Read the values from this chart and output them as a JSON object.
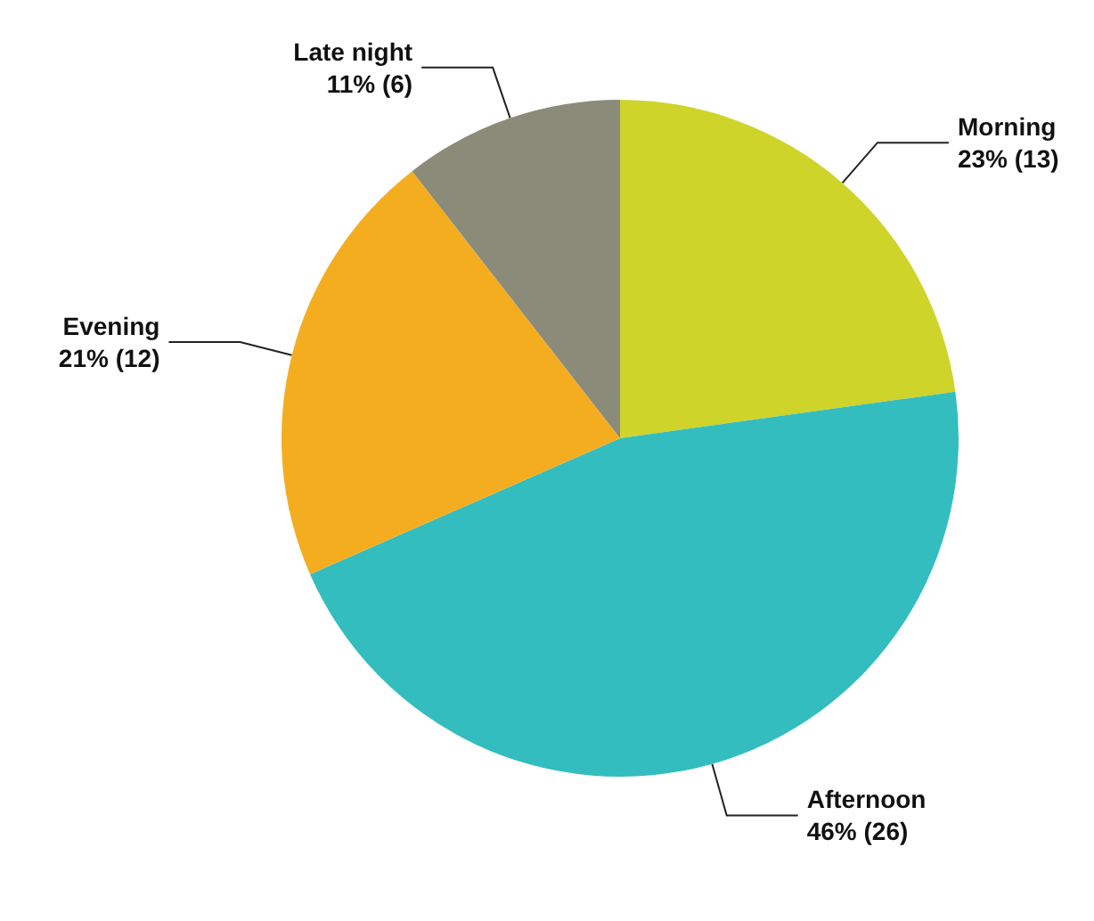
{
  "chart_data": {
    "type": "pie",
    "categories": [
      "Morning",
      "Afternoon",
      "Evening",
      "Late night"
    ],
    "values": [
      13,
      26,
      12,
      6
    ],
    "value_labels": [
      "23% (13)",
      "46% (26)",
      "21% (12)",
      "11% (6)"
    ],
    "colors": [
      "#cfd42a",
      "#33bdbf",
      "#f5ad20",
      "#8b8b7a"
    ],
    "legend": false
  }
}
